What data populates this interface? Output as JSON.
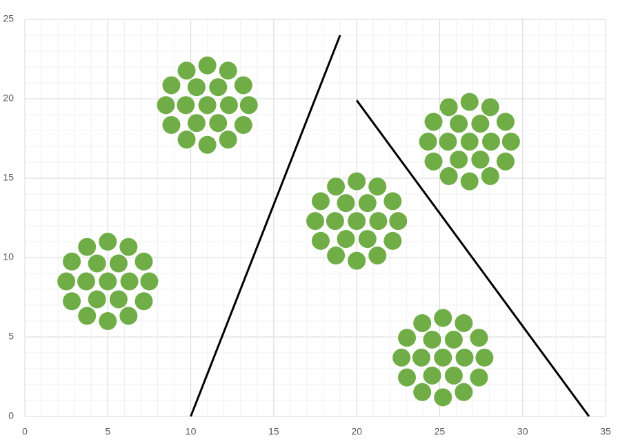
{
  "chart_data": {
    "type": "scatter",
    "xlim": [
      0,
      35
    ],
    "xticks": [
      0,
      5,
      10,
      15,
      20,
      25,
      30,
      35
    ],
    "ylim": [
      0,
      25
    ],
    "yticks": [
      0,
      5,
      10,
      15,
      20,
      25
    ],
    "grid": true,
    "minor_grid": true,
    "series": [
      {
        "style": "markers",
        "color": "#70ad47",
        "x": [
          5,
          6.3,
          5.65,
          4.35,
          3.7,
          4.35,
          5.65,
          7.5,
          7.17,
          6.25,
          5,
          3.75,
          2.83,
          2.5,
          2.83,
          3.75,
          5,
          6.25,
          7.17,
          11,
          12.3,
          11.65,
          10.35,
          9.7,
          10.35,
          11.65,
          13.5,
          13.17,
          12.25,
          11,
          9.75,
          8.83,
          8.5,
          8.83,
          9.75,
          11,
          12.25,
          13.17,
          20,
          21.3,
          20.65,
          19.35,
          18.7,
          19.35,
          20.65,
          22.5,
          22.17,
          21.25,
          20,
          18.75,
          17.83,
          17.5,
          17.83,
          18.75,
          20,
          21.25,
          22.17,
          26.8,
          28.1,
          27.45,
          26.15,
          25.5,
          26.15,
          27.45,
          29.3,
          28.97,
          28.05,
          26.8,
          25.55,
          24.63,
          24.3,
          24.63,
          25.55,
          26.8,
          28.05,
          28.97,
          25.2,
          26.5,
          25.85,
          24.55,
          23.9,
          24.55,
          25.85,
          27.7,
          27.37,
          26.45,
          25.2,
          23.95,
          23.03,
          22.7,
          23.03,
          23.95,
          25.2,
          26.45,
          27.37
        ],
        "values": [
          8.5,
          8.5,
          9.63,
          9.63,
          8.5,
          7.37,
          7.37,
          8.5,
          9.75,
          10.67,
          11,
          10.67,
          9.75,
          8.5,
          7.25,
          6.33,
          6,
          6.33,
          7.25,
          19.6,
          19.6,
          20.73,
          20.73,
          19.6,
          18.47,
          18.47,
          19.6,
          20.85,
          21.77,
          22.1,
          21.77,
          20.85,
          19.6,
          18.35,
          17.43,
          17.1,
          17.43,
          18.35,
          12.3,
          12.3,
          13.43,
          13.43,
          12.3,
          11.17,
          11.17,
          12.3,
          13.55,
          14.47,
          14.8,
          14.47,
          13.55,
          12.3,
          11.05,
          10.13,
          9.8,
          10.13,
          11.05,
          17.3,
          17.3,
          18.43,
          18.43,
          17.3,
          16.17,
          16.17,
          17.3,
          18.55,
          19.47,
          19.8,
          19.47,
          18.55,
          17.3,
          16.05,
          15.13,
          14.8,
          15.13,
          16.05,
          3.7,
          3.7,
          4.83,
          4.83,
          3.7,
          2.57,
          2.57,
          3.7,
          4.95,
          5.87,
          6.2,
          5.87,
          4.95,
          3.7,
          2.45,
          1.53,
          1.2,
          1.53,
          2.45
        ]
      },
      {
        "style": "line",
        "color": "#000000",
        "x": [
          10,
          19
        ],
        "values": [
          0,
          24
        ]
      },
      {
        "style": "line",
        "color": "#000000",
        "x": [
          20,
          34
        ],
        "values": [
          19.9,
          0
        ]
      }
    ]
  }
}
